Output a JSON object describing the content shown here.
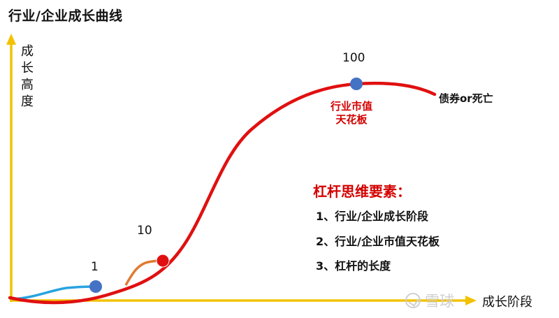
{
  "title": "行业/企业成长曲线",
  "y_axis_label": "成长高度",
  "x_axis_label": "成长阶段",
  "points": [
    {
      "label": "1"
    },
    {
      "label": "10"
    },
    {
      "label": "100"
    }
  ],
  "end_label": "债券or死亡",
  "ceiling_label": "行业市值\n天花板",
  "leverage": {
    "title": "杠杆思维要素：",
    "items": [
      "1、行业/企业成长阶段",
      "2、行业/企业市值天花板",
      "3、杠杆的长度"
    ]
  },
  "watermark": "雪球",
  "colors": {
    "axis": "#f2c200",
    "main_curve": "#e01010",
    "early_curve_blue": "#29a3e0",
    "early_curve_orange": "#e07a30",
    "point_blue": "#4472c4",
    "point_red": "#e01010",
    "accent_red": "#d40000"
  }
}
